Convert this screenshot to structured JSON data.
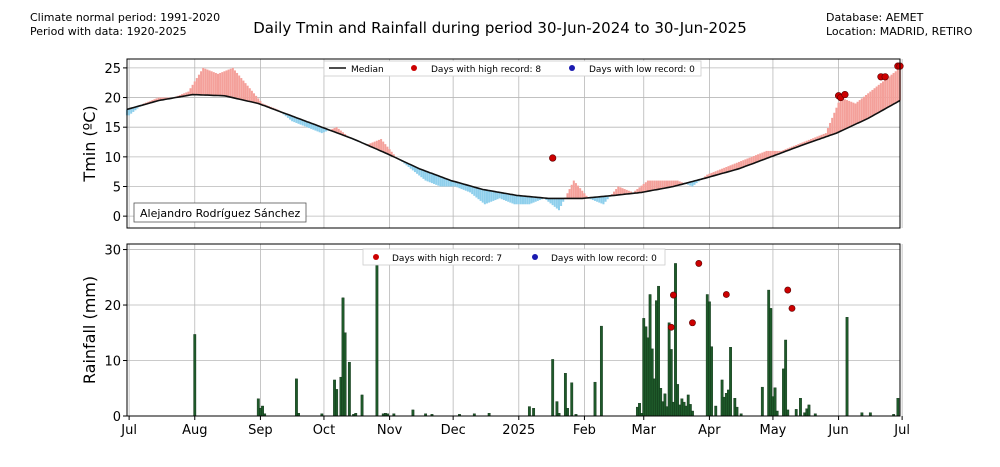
{
  "header": {
    "climate_normal": "Climate normal period: 1991-2020",
    "period_with_data": "Period with data: 1920-2025",
    "database": "Database: AEMET",
    "location": "Location: MADRID, RETIRO",
    "title": "Daily Tmin and Rainfall during period 30-Jun-2024 to 30-Jun-2025"
  },
  "colors": {
    "above_median": "#f4a09a",
    "below_median": "#8ecfec",
    "median_line": "#111111",
    "high_record": "#cc0000",
    "low_record": "#1a1ab0",
    "rain_bar": "#1e5a2a",
    "grid": "#b8b8b8"
  },
  "chart_data": [
    {
      "type": "bar",
      "ylabel": "Tmin (ºC)",
      "ylim": [
        -2,
        26.5
      ],
      "yticks": [
        0,
        5,
        10,
        15,
        20,
        25
      ],
      "grid": true,
      "legend_position": "top-center",
      "legend": {
        "median": "Median",
        "high": "Days with high record: 8",
        "low": "Days with low record: 0"
      },
      "annotation": "Alejandro Rodríguez Sánchez",
      "median_curve": {
        "x": [
          "2024-06-30",
          "2024-07-15",
          "2024-07-31",
          "2024-08-15",
          "2024-08-31",
          "2024-09-15",
          "2024-09-30",
          "2024-10-15",
          "2024-10-31",
          "2024-11-15",
          "2024-11-30",
          "2024-12-15",
          "2024-12-31",
          "2025-01-15",
          "2025-01-31",
          "2025-02-15",
          "2025-02-28",
          "2025-03-15",
          "2025-03-31",
          "2025-04-15",
          "2025-04-30",
          "2025-05-15",
          "2025-05-31",
          "2025-06-15",
          "2025-06-30"
        ],
        "y": [
          18.0,
          19.5,
          20.5,
          20.3,
          19.0,
          17.0,
          15.0,
          13.0,
          10.5,
          8.0,
          6.0,
          4.5,
          3.5,
          3.0,
          3.0,
          3.5,
          4.0,
          5.0,
          6.5,
          8.0,
          10.0,
          12.0,
          14.0,
          16.5,
          19.5
        ]
      },
      "observed_tmin": {
        "x": [
          "2024-07-01",
          "2024-07-08",
          "2024-07-15",
          "2024-07-22",
          "2024-07-29",
          "2024-08-05",
          "2024-08-12",
          "2024-08-19",
          "2024-08-26",
          "2024-09-02",
          "2024-09-09",
          "2024-09-16",
          "2024-09-23",
          "2024-09-30",
          "2024-10-07",
          "2024-10-14",
          "2024-10-21",
          "2024-10-28",
          "2024-11-04",
          "2024-11-11",
          "2024-11-18",
          "2024-11-25",
          "2024-12-02",
          "2024-12-09",
          "2024-12-16",
          "2024-12-23",
          "2024-12-30",
          "2025-01-06",
          "2025-01-13",
          "2025-01-20",
          "2025-01-27",
          "2025-02-03",
          "2025-02-10",
          "2025-02-17",
          "2025-02-24",
          "2025-03-03",
          "2025-03-10",
          "2025-03-17",
          "2025-03-24",
          "2025-03-31",
          "2025-04-07",
          "2025-04-14",
          "2025-04-21",
          "2025-04-28",
          "2025-05-05",
          "2025-05-12",
          "2025-05-19",
          "2025-05-26",
          "2025-06-02",
          "2025-06-09",
          "2025-06-16",
          "2025-06-23",
          "2025-06-30"
        ],
        "y": [
          17,
          19,
          20,
          20,
          21,
          25,
          24,
          25,
          22,
          19,
          18,
          16,
          15,
          14,
          15,
          13,
          12,
          13,
          10,
          8,
          6,
          5,
          5,
          4,
          2,
          3,
          2,
          2,
          3,
          1,
          6,
          3,
          2,
          5,
          4,
          6,
          6,
          6,
          5,
          7,
          8,
          9,
          10,
          11,
          11,
          12,
          13,
          14,
          20,
          19,
          21,
          23,
          25
        ]
      },
      "high_records": {
        "x": [
          "2025-01-17",
          "2025-06-01",
          "2025-06-02",
          "2025-06-04",
          "2025-06-21",
          "2025-06-23",
          "2025-06-29",
          "2025-06-30"
        ],
        "y": [
          9.8,
          20.3,
          20.0,
          20.5,
          23.5,
          23.5,
          25.3,
          25.3
        ]
      },
      "low_records": {
        "x": [],
        "y": []
      }
    },
    {
      "type": "bar",
      "ylabel": "Rainfall (mm)",
      "ylim": [
        0,
        31
      ],
      "yticks": [
        0,
        10,
        20,
        30
      ],
      "grid": true,
      "legend_position": "top-center",
      "legend": {
        "high": "Days with high record: 7",
        "low": "Days with low record: 0"
      },
      "xtick_labels": [
        "Jul",
        "Aug",
        "Sep",
        "Oct",
        "Nov",
        "Dec",
        "2025",
        "Feb",
        "Mar",
        "Apr",
        "May",
        "Jun",
        "Jul"
      ],
      "xtick_dates": [
        "2024-07-01",
        "2024-08-01",
        "2024-09-01",
        "2024-10-01",
        "2024-11-01",
        "2024-12-01",
        "2025-01-01",
        "2025-02-01",
        "2025-03-01",
        "2025-04-01",
        "2025-05-01",
        "2025-06-01",
        "2025-07-01"
      ],
      "x": [
        "2024-08-01",
        "2024-08-31",
        "2024-09-01",
        "2024-09-02",
        "2024-09-03",
        "2024-09-18",
        "2024-09-19",
        "2024-09-30",
        "2024-10-06",
        "2024-10-07",
        "2024-10-09",
        "2024-10-10",
        "2024-10-11",
        "2024-10-13",
        "2024-10-15",
        "2024-10-16",
        "2024-10-19",
        "2024-10-26",
        "2024-10-29",
        "2024-10-30",
        "2024-10-31",
        "2024-11-03",
        "2024-11-12",
        "2024-11-18",
        "2024-11-21",
        "2024-12-04",
        "2024-12-11",
        "2024-12-18",
        "2025-01-06",
        "2025-01-08",
        "2025-01-17",
        "2025-01-19",
        "2025-01-20",
        "2025-01-23",
        "2025-01-24",
        "2025-01-26",
        "2025-01-28",
        "2025-02-06",
        "2025-02-09",
        "2025-02-26",
        "2025-02-27",
        "2025-02-28",
        "2025-03-01",
        "2025-03-02",
        "2025-03-03",
        "2025-03-04",
        "2025-03-05",
        "2025-03-06",
        "2025-03-07",
        "2025-03-08",
        "2025-03-09",
        "2025-03-10",
        "2025-03-11",
        "2025-03-12",
        "2025-03-13",
        "2025-03-14",
        "2025-03-15",
        "2025-03-16",
        "2025-03-17",
        "2025-03-18",
        "2025-03-19",
        "2025-03-20",
        "2025-03-21",
        "2025-03-22",
        "2025-03-23",
        "2025-03-24",
        "2025-03-31",
        "2025-04-01",
        "2025-04-02",
        "2025-04-04",
        "2025-04-07",
        "2025-04-08",
        "2025-04-09",
        "2025-04-10",
        "2025-04-11",
        "2025-04-13",
        "2025-04-14",
        "2025-04-16",
        "2025-04-26",
        "2025-04-29",
        "2025-04-30",
        "2025-05-01",
        "2025-05-02",
        "2025-05-03",
        "2025-05-06",
        "2025-05-07",
        "2025-05-08",
        "2025-05-12",
        "2025-05-14",
        "2025-05-16",
        "2025-05-17",
        "2025-05-18",
        "2025-05-21",
        "2025-06-05",
        "2025-06-12",
        "2025-06-16",
        "2025-06-27",
        "2025-06-29"
      ],
      "values": [
        14.7,
        3.1,
        1.4,
        1.8,
        0.4,
        6.7,
        0.5,
        0.4,
        6.5,
        4.8,
        7.0,
        21.3,
        15.0,
        9.7,
        0.3,
        0.5,
        3.8,
        27.6,
        0.4,
        0.5,
        0.4,
        0.4,
        1.1,
        0.4,
        0.3,
        0.3,
        0.4,
        0.5,
        1.7,
        1.4,
        10.2,
        2.6,
        0.5,
        7.7,
        1.4,
        6.0,
        0.3,
        6.1,
        16.2,
        1.6,
        2.3,
        0.5,
        17.6,
        16.1,
        14.1,
        21.9,
        12.1,
        6.7,
        20.8,
        23.4,
        5.0,
        2.6,
        4.0,
        1.7,
        16.8,
        12.0,
        2.5,
        27.5,
        5.7,
        2.0,
        3.1,
        2.5,
        1.8,
        3.8,
        2.1,
        0.9,
        21.9,
        20.6,
        12.5,
        1.8,
        6.5,
        3.4,
        4.1,
        4.7,
        12.4,
        3.2,
        1.6,
        0.4,
        5.2,
        22.7,
        19.4,
        3.5,
        5.1,
        0.9,
        8.5,
        13.7,
        1.1,
        1.2,
        3.2,
        0.6,
        1.3,
        2.0,
        0.4,
        17.8,
        0.6,
        0.6,
        0.3,
        3.2
      ],
      "high_records": {
        "x": [
          "2025-03-14",
          "2025-03-15",
          "2025-03-24",
          "2025-03-27",
          "2025-04-09",
          "2025-05-08",
          "2025-05-10"
        ],
        "y": [
          16.0,
          21.8,
          16.8,
          27.5,
          21.9,
          22.7,
          19.4
        ]
      },
      "low_records": {
        "x": [],
        "y": []
      }
    }
  ]
}
